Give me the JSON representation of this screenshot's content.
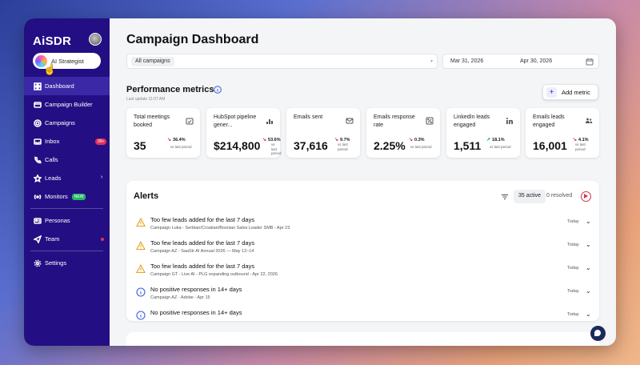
{
  "brand": "AiSDR",
  "sidebar": {
    "strategist_label": "AI Strategist",
    "items": [
      {
        "label": "Dashboard",
        "icon": "grid-icon"
      },
      {
        "label": "Campaign Builder",
        "icon": "builder-icon"
      },
      {
        "label": "Campaigns",
        "icon": "target-icon"
      },
      {
        "label": "Inbox",
        "icon": "inbox-icon",
        "badge": "99+"
      },
      {
        "label": "Calls",
        "icon": "phone-icon"
      },
      {
        "label": "Leads",
        "icon": "star-icon"
      },
      {
        "label": "Monitors",
        "icon": "radio-icon",
        "badge": "NEW"
      },
      {
        "label": "Personas",
        "icon": "persona-icon"
      },
      {
        "label": "Team",
        "icon": "send-icon"
      },
      {
        "label": "Settings",
        "icon": "gear-icon"
      }
    ]
  },
  "page": {
    "title": "Campaign Dashboard",
    "campaign_filter": "All campaigns",
    "date_start": "Mar 31, 2026",
    "date_end": "Apr 30, 2026"
  },
  "performance": {
    "title": "Performance metrics",
    "last_update": "Last update 11:07 AM",
    "add_metric": "Add metric",
    "metrics": [
      {
        "label": "Total meetings booked",
        "value": "35",
        "change": "36.4%",
        "direction": "down",
        "vs": "vs last period",
        "icon": "calendar-icon"
      },
      {
        "label": "HubSpot pipeline gener...",
        "value": "$214,800",
        "change": "53.6%",
        "direction": "down",
        "vs": "vs last period",
        "icon": "chart-icon"
      },
      {
        "label": "Emails sent",
        "value": "37,616",
        "change": "9.7%",
        "direction": "down",
        "vs": "vs last period",
        "icon": "mail-icon"
      },
      {
        "label": "Emails response rate",
        "value": "2.25%",
        "change": "0.3%",
        "direction": "down",
        "vs": "vs last period",
        "icon": "percent-icon"
      },
      {
        "label": "LinkedIn leads engaged",
        "value": "1,511",
        "change": "18.1%",
        "direction": "up",
        "vs": "vs last period",
        "icon": "linkedin-icon"
      },
      {
        "label": "Emails leads engaged",
        "value": "16,001",
        "change": "4.1%",
        "direction": "down",
        "vs": "vs last period",
        "icon": "leads-icon"
      }
    ]
  },
  "alerts": {
    "title": "Alerts",
    "active": "35 active",
    "resolved": "0 resolved",
    "items": [
      {
        "type": "warning",
        "title": "Too few leads added for the last 7 days",
        "sub": "Campaign Luka - Serbian/Croatian/Bosnian Sales Leader SMB - Apr 23",
        "when": "Today"
      },
      {
        "type": "warning",
        "title": "Too few leads added for the last 7 days",
        "sub": "Campaign AZ - SaaStr AI Annual 2026 — May 12–14",
        "when": "Today"
      },
      {
        "type": "warning",
        "title": "Too few leads added for the last 7 days",
        "sub": "Campaign GT - Live AI - PLG expanding outbound - Apr 22, 2026",
        "when": "Today"
      },
      {
        "type": "info",
        "title": "No positive responses in 14+ days",
        "sub": "Campaign AZ - Adobe - Apr 15",
        "when": "Today"
      },
      {
        "type": "info",
        "title": "No positive responses in 14+ days",
        "sub": "",
        "when": "Today"
      }
    ]
  },
  "colors": {
    "sidebar": "#230f83",
    "accent": "#3b36c4",
    "down": "#d6344f",
    "up": "#1f9d55"
  }
}
